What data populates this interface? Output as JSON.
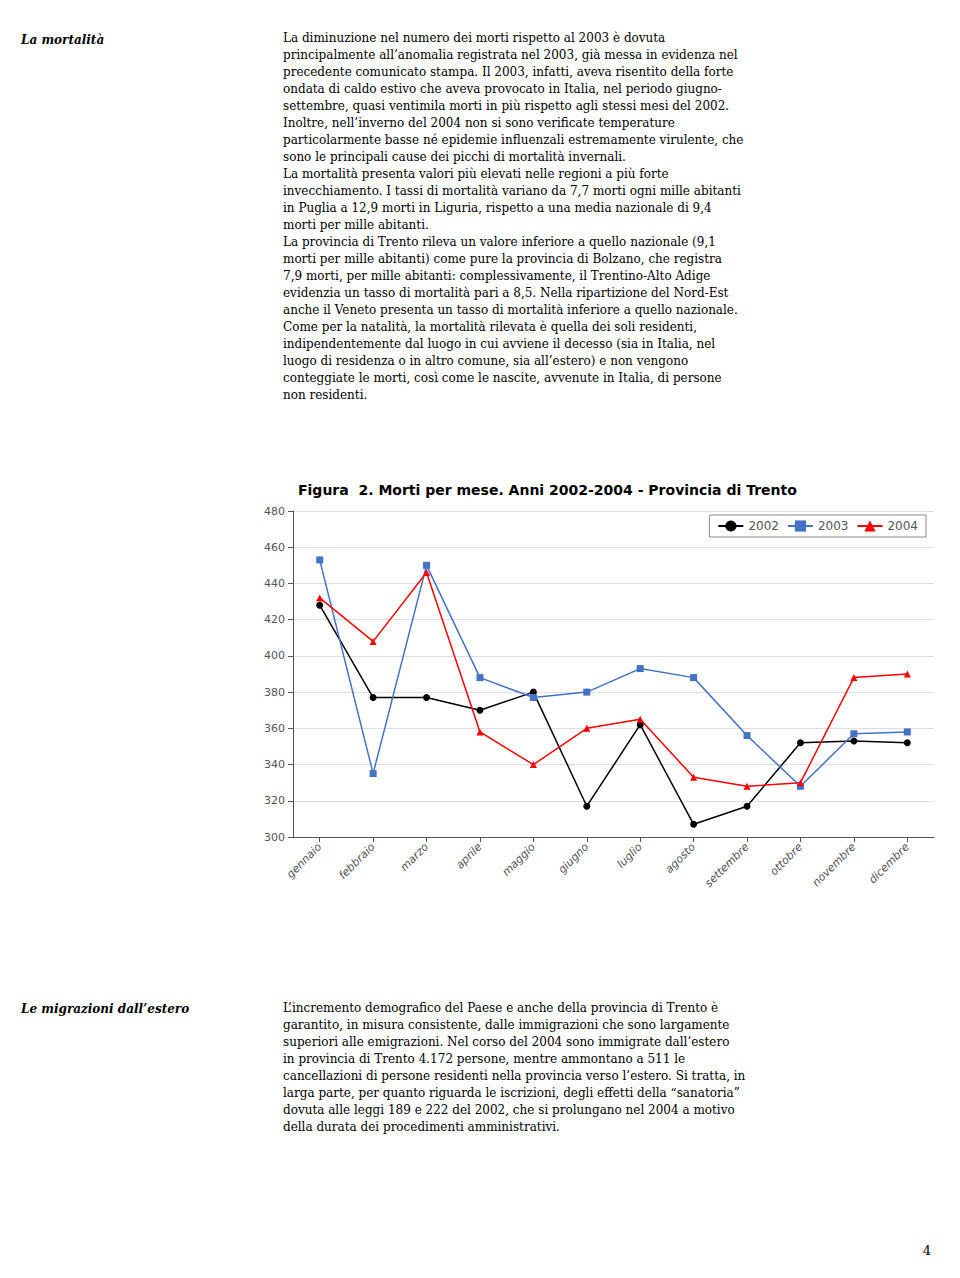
{
  "chart_data": {
    "type": "line",
    "title": "Figura  2. Morti per mese. Anni 2002-2004 - Provincia di Trento",
    "categories": [
      "gennaio",
      "febbraio",
      "marzo",
      "aprile",
      "maggio",
      "giugno",
      "luglio",
      "agosto",
      "settembre",
      "ottobre",
      "novembre",
      "dicembre"
    ],
    "series": [
      {
        "name": "2002",
        "color": "#000000",
        "marker": "circle",
        "line_style": "solid",
        "values": [
          428,
          377,
          377,
          370,
          380,
          317,
          362,
          307,
          317,
          352,
          353,
          352
        ]
      },
      {
        "name": "2003",
        "color": "#4472C4",
        "marker": "square",
        "line_style": "solid",
        "values": [
          453,
          335,
          450,
          388,
          377,
          380,
          393,
          388,
          356,
          328,
          357,
          358
        ]
      },
      {
        "name": "2004",
        "color": "#FF0000",
        "marker": "triangle",
        "line_style": "solid",
        "values": [
          432,
          408,
          446,
          358,
          340,
          360,
          365,
          333,
          328,
          330,
          388,
          390
        ]
      }
    ],
    "ylim": [
      300,
      480
    ],
    "yticks": [
      300,
      320,
      340,
      360,
      380,
      400,
      420,
      440,
      460,
      480
    ],
    "grid": true,
    "legend": "upper right",
    "annotations": [
      "La mortalità",
      "La diminuzione nel numero dei morti rispetto al 2003 è dovuta\nprincipalmente all’anomalia registrata nel 2003, già messa in evidenza nel\nprecedente comunicato stampa. Il 2003, infatti, aveva risentito della forte\nondata di caldo estivo che aveva provocato in Italia, nel periodo giugno-\nsettembre, quasi ventimila morti in più rispetto agli stessi mesi del 2002.\nInoltre, nell’inverno del 2004 non si sono verificate temperature\nparticolarmente basse né epidemie influenzali estremamente virulente, che\nsono le principali cause dei picchi di mortalità invernali.\nLa mortalità presenta valori più elevati nelle regioni a più forte\ninvecchiamento. I tassi di mortalità variano da 7,7 morti ogni mille abitanti\nin Puglia a 12,9 morti in Liguria, rispetto a una media nazionale di 9,4\nmorti per mille abitanti.\nLa provincia di Trento rileva un valore inferiore a quello nazionale (9,1\nmorti per mille abitanti) come pure la provincia di Bolzano, che registra\n7,9 morti, per mille abitanti: complessivamente, il Trentino-Alto Adige\nevidenzia un tasso di mortalità pari a 8,5. Nella ripartizione del Nord-Est\nanche il Veneto presenta un tasso di mortalità inferiore a quello nazionale.\nCome per la natalità, la mortalità rilevata è quella dei soli residenti,\nindipendentemente dal luogo in cui avviene il decesso (sia in Italia, nel\nluogo di residenza o in altro comune, sia all’estero) e non vengono\nconteggiate le morti, così come le nascite, avvenute in Italia, di persone\nnon residenti.",
      "Le migrazioni dall’estero",
      "L’incremento demografico del Paese e anche della provincia di Trento è\ngarantito, in misura consistente, dalle immigrazioni che sono largamente\nsuperiori alle emigrazioni. Nel corso del 2004 sono immigrate dall’estero\nin provincia di Trento 4.172 persone, mentre ammontano a 511 le\ncancellazioni di persone residenti nella provincia verso l’estero. Si tratta, in\nlarga parte, per quanto riguarda le iscrizioni, degli effetti della “sanatoria”\ndovuta alle leggi 189 e 222 del 2002, che si prolungano nel 2004 a motivo\ndella durata dei procedimenti amministrativi.",
      "4"
    ]
  }
}
